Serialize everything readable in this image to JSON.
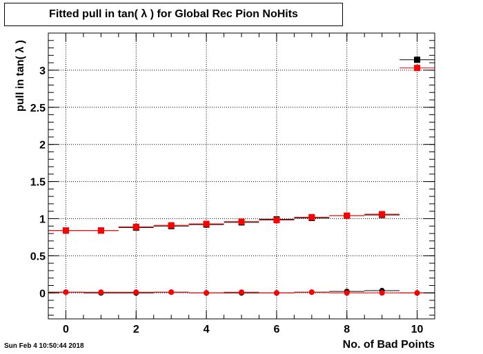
{
  "chart_data": {
    "type": "scatter",
    "title": "Fitted pull in tan( λ ) for Global Rec Pion NoHits",
    "xlabel": "No. of Bad Points",
    "ylabel": "pull in tan( λ )",
    "xlim": [
      -0.5,
      10.5
    ],
    "ylim": [
      -0.35,
      3.5
    ],
    "x_ticks": [
      "0",
      "2",
      "4",
      "6",
      "8",
      "10"
    ],
    "y_ticks": [
      "0",
      "0.5",
      "1",
      "1.5",
      "2",
      "2.5",
      "3"
    ],
    "grid": true,
    "series": [
      {
        "color": "#000000",
        "marker": "square",
        "x": [
          0,
          1,
          2,
          3,
          4,
          5,
          6,
          7,
          8,
          9,
          10
        ],
        "y": [
          0.84,
          0.84,
          0.88,
          0.9,
          0.92,
          0.95,
          0.99,
          1.01,
          1.04,
          1.05,
          3.14
        ]
      },
      {
        "color": "#ff0000",
        "marker": "square",
        "x": [
          0,
          1,
          2,
          3,
          4,
          5,
          6,
          7,
          8,
          9,
          10
        ],
        "y": [
          0.84,
          0.84,
          0.89,
          0.91,
          0.93,
          0.96,
          0.98,
          1.02,
          1.04,
          1.06,
          3.03
        ]
      },
      {
        "color": "#000000",
        "marker": "circle",
        "x": [
          0,
          1,
          2,
          3,
          4,
          5,
          6,
          7,
          8,
          9,
          10
        ],
        "y": [
          0.01,
          0.0,
          0.0,
          0.01,
          0.0,
          0.0,
          0.0,
          0.01,
          0.02,
          0.03,
          0.0
        ]
      },
      {
        "color": "#ff0000",
        "marker": "circle",
        "x": [
          0,
          1,
          2,
          3,
          4,
          5,
          6,
          7,
          8,
          9,
          10
        ],
        "y": [
          0.01,
          0.01,
          0.01,
          0.01,
          0.0,
          0.01,
          0.0,
          0.01,
          0.0,
          0.0,
          0.0
        ]
      }
    ]
  },
  "footer": {
    "date": "Sun Feb  4 10:50:44 2018"
  }
}
